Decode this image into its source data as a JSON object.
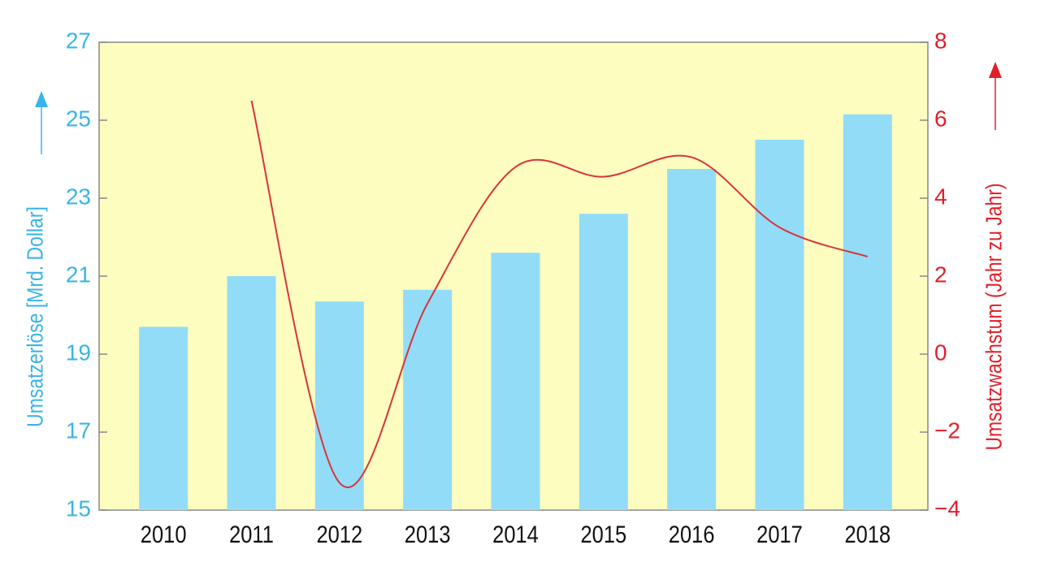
{
  "chart_data": {
    "type": "bar_line",
    "ylabel": "Umsatzerlöse [Mrd. Dollar]",
    "y2label": "Umsatzwachstum (Jahr zu Jahr)",
    "categories": [
      "2010",
      "2011",
      "2012",
      "2013",
      "2014",
      "2015",
      "2016",
      "2017",
      "2018"
    ],
    "series": [
      {
        "type": "bar",
        "axis": "y",
        "color": "#92dcf8",
        "values": [
          19.7,
          21.0,
          20.35,
          20.65,
          21.6,
          22.6,
          23.75,
          24.5,
          25.15
        ]
      },
      {
        "type": "line",
        "axis": "y2",
        "color": "#d9343a",
        "values": [
          null,
          6.5,
          -3.3,
          1.3,
          4.8,
          4.55,
          5.05,
          3.25,
          2.5
        ]
      }
    ],
    "ylim": [
      15,
      27
    ],
    "yticks": [
      15,
      17,
      19,
      21,
      23,
      25,
      27
    ],
    "y2lim": [
      -4,
      8
    ],
    "y2ticks": [
      {
        "value": -4,
        "label": "−4"
      },
      {
        "value": -2,
        "label": "−2"
      },
      0,
      2,
      4,
      6,
      8
    ],
    "ycolor": "#3ab4e8",
    "y2color": "#e0202a",
    "background": "#fdfdc0"
  }
}
